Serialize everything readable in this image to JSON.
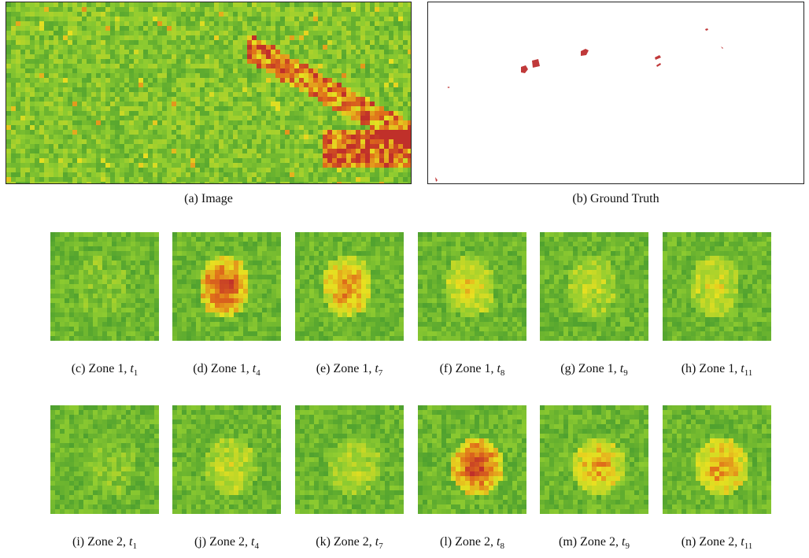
{
  "top": {
    "image_caption": "(a) Image",
    "gt_caption": "(b) Ground Truth"
  },
  "row1": [
    {
      "label": "(c) Zone 1, ",
      "var": "t",
      "sub": "1"
    },
    {
      "label": "(d) Zone 1, ",
      "var": "t",
      "sub": "4"
    },
    {
      "label": "(e) Zone 1, ",
      "var": "t",
      "sub": "7"
    },
    {
      "label": "(f) Zone 1, ",
      "var": "t",
      "sub": "8"
    },
    {
      "label": "(g) Zone 1, ",
      "var": "t",
      "sub": "9"
    },
    {
      "label": "(h) Zone 1, ",
      "var": "t",
      "sub": "11"
    }
  ],
  "row2": [
    {
      "label": "(i) Zone 2, ",
      "var": "t",
      "sub": "1"
    },
    {
      "label": "(j) Zone 2, ",
      "var": "t",
      "sub": "4"
    },
    {
      "label": "(k) Zone 2, ",
      "var": "t",
      "sub": "7"
    },
    {
      "label": "(l) Zone 2, ",
      "var": "t",
      "sub": "8"
    },
    {
      "label": "(m) Zone 2, ",
      "var": "t",
      "sub": "9"
    },
    {
      "label": "(n) Zone 2, ",
      "var": "t",
      "sub": "11"
    }
  ],
  "colors": {
    "low": "#2e8b2e",
    "mid": "#8fcc30",
    "high": "#e8e020",
    "hot": "#e0701a",
    "burn": "#c0302a"
  }
}
